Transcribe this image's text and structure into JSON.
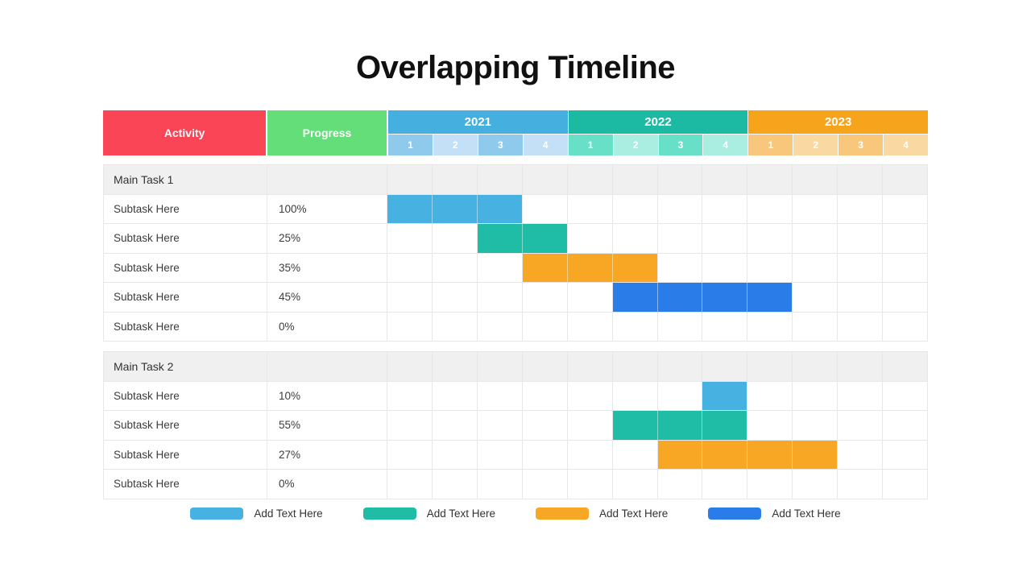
{
  "title": "Overlapping Timeline",
  "colors": {
    "activity_header": "#FA4557",
    "progress_header": "#63DE78",
    "main_row_bg": "#F0F0F0",
    "grid_line": "#E7E7E7",
    "bars": {
      "light-blue": "#47B2E2",
      "teal": "#1FBDA5",
      "orange": "#F8A724",
      "royal-blue": "#2A7DE8"
    }
  },
  "header": {
    "activity_label": "Activity",
    "progress_label": "Progress",
    "years": [
      {
        "label": "2021",
        "color": "#45AFE0",
        "q_strong": "#8FCAEC",
        "q_light": "#C3E0F6",
        "quarters": [
          "1",
          "2",
          "3",
          "4"
        ]
      },
      {
        "label": "2022",
        "color": "#1CBAA2",
        "q_strong": "#68E0C8",
        "q_light": "#A9EEE1",
        "quarters": [
          "1",
          "2",
          "3",
          "4"
        ]
      },
      {
        "label": "2023",
        "color": "#F6A41C",
        "q_strong": "#F8C77C",
        "q_light": "#FAD8A1",
        "quarters": [
          "1",
          "2",
          "3",
          "4"
        ]
      }
    ]
  },
  "sections": [
    {
      "title": "Main Task 1",
      "rows": [
        {
          "activity": "Subtask Here",
          "progress": "100%",
          "bar": {
            "start": 1,
            "span": 3,
            "color": "light-blue"
          }
        },
        {
          "activity": "Subtask Here",
          "progress": "25%",
          "bar": {
            "start": 3,
            "span": 2,
            "color": "teal"
          }
        },
        {
          "activity": "Subtask Here",
          "progress": "35%",
          "bar": {
            "start": 4,
            "span": 3,
            "color": "orange"
          }
        },
        {
          "activity": "Subtask Here",
          "progress": "45%",
          "bar": {
            "start": 6,
            "span": 4,
            "color": "royal-blue"
          }
        },
        {
          "activity": "Subtask Here",
          "progress": "0%",
          "bar": null
        }
      ]
    },
    {
      "title": "Main Task 2",
      "rows": [
        {
          "activity": "Subtask Here",
          "progress": "10%",
          "bar": {
            "start": 8,
            "span": 1,
            "color": "light-blue"
          }
        },
        {
          "activity": "Subtask Here",
          "progress": "55%",
          "bar": {
            "start": 6,
            "span": 3,
            "color": "teal"
          }
        },
        {
          "activity": "Subtask Here",
          "progress": "27%",
          "bar": {
            "start": 7,
            "span": 4,
            "color": "orange"
          }
        },
        {
          "activity": "Subtask Here",
          "progress": "0%",
          "bar": null
        }
      ]
    }
  ],
  "legend": [
    {
      "label": "Add Text Here",
      "color": "light-blue"
    },
    {
      "label": "Add Text Here",
      "color": "teal"
    },
    {
      "label": "Add Text Here",
      "color": "orange"
    },
    {
      "label": "Add Text Here",
      "color": "royal-blue"
    }
  ],
  "chart_data": {
    "type": "table",
    "subtype": "gantt-overlapping-timeline",
    "title": "Overlapping Timeline",
    "columns": [
      "Activity",
      "Progress",
      "2021 Q1",
      "2021 Q2",
      "2021 Q3",
      "2021 Q4",
      "2022 Q1",
      "2022 Q2",
      "2022 Q3",
      "2022 Q4",
      "2023 Q1",
      "2023 Q2",
      "2023 Q3",
      "2023 Q4"
    ],
    "time_axis": {
      "years": [
        "2021",
        "2022",
        "2023"
      ],
      "quarters_per_year": 4
    },
    "groups": [
      {
        "name": "Main Task 1",
        "tasks": [
          {
            "activity": "Subtask Here",
            "progress": "100%",
            "start": "2021 Q1",
            "end": "2021 Q3",
            "color": "light-blue"
          },
          {
            "activity": "Subtask Here",
            "progress": "25%",
            "start": "2021 Q3",
            "end": "2021 Q4",
            "color": "teal"
          },
          {
            "activity": "Subtask Here",
            "progress": "35%",
            "start": "2021 Q4",
            "end": "2022 Q2",
            "color": "orange"
          },
          {
            "activity": "Subtask Here",
            "progress": "45%",
            "start": "2022 Q2",
            "end": "2023 Q1",
            "color": "royal-blue"
          },
          {
            "activity": "Subtask Here",
            "progress": "0%",
            "start": null,
            "end": null,
            "color": null
          }
        ]
      },
      {
        "name": "Main Task 2",
        "tasks": [
          {
            "activity": "Subtask Here",
            "progress": "10%",
            "start": "2022 Q4",
            "end": "2022 Q4",
            "color": "light-blue"
          },
          {
            "activity": "Subtask Here",
            "progress": "55%",
            "start": "2022 Q2",
            "end": "2022 Q4",
            "color": "teal"
          },
          {
            "activity": "Subtask Here",
            "progress": "27%",
            "start": "2022 Q3",
            "end": "2023 Q2",
            "color": "orange"
          },
          {
            "activity": "Subtask Here",
            "progress": "0%",
            "start": null,
            "end": null,
            "color": null
          }
        ]
      }
    ],
    "legend_entries": [
      "Add Text Here",
      "Add Text Here",
      "Add Text Here",
      "Add Text Here"
    ]
  }
}
